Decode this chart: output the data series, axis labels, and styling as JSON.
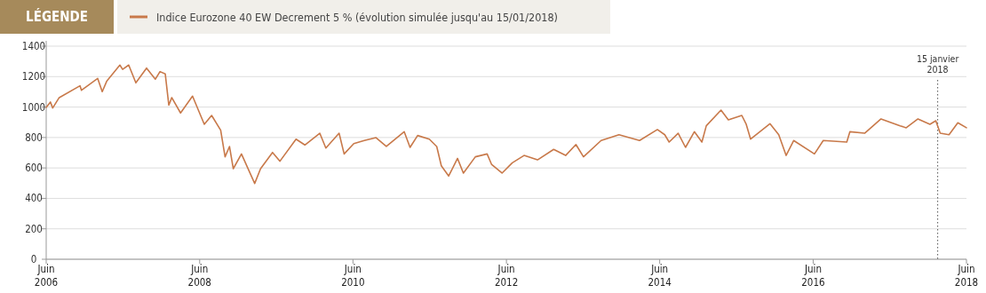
{
  "chart_data": {
    "type": "line",
    "legend_title": "LÉGENDE",
    "legend": "top left",
    "grid": "y",
    "xlim": [
      "2006-06-01",
      "2018-06-01"
    ],
    "xticks": [
      {
        "value": "2006-06-01",
        "label": "Juin\n2006"
      },
      {
        "value": "2008-06-01",
        "label": "Juin\n2008"
      },
      {
        "value": "2010-06-01",
        "label": "Juin\n2010"
      },
      {
        "value": "2012-06-01",
        "label": "Juin\n2012"
      },
      {
        "value": "2014-06-01",
        "label": "Juin\n2014"
      },
      {
        "value": "2016-06-01",
        "label": "Juin\n2016"
      },
      {
        "value": "2018-06-01",
        "label": "Juin\n2018"
      }
    ],
    "ylim": [
      0,
      1400
    ],
    "yticks": [
      0,
      200,
      400,
      600,
      800,
      1000,
      1200,
      1400
    ],
    "ref_lines": [
      {
        "axis": "x",
        "value": "2018-01-15",
        "label": "15 janvier\n2018",
        "line_style": "dotted",
        "color": "#555555"
      }
    ],
    "series": [
      {
        "name": "Indice Eurozone 40 EW Decrement 5 % (évolution simulée jusqu'au 15/01/2018)",
        "color": "#c8794a",
        "x": [
          "2006-06-01",
          "2006-06-21",
          "2006-07-02",
          "2006-08-02",
          "2006-11-09",
          "2006-11-16",
          "2007-02-01",
          "2007-02-23",
          "2007-03-16",
          "2007-05-18",
          "2007-05-31",
          "2007-06-29",
          "2007-08-02",
          "2007-09-22",
          "2007-11-03",
          "2007-11-25",
          "2007-12-20",
          "2008-01-06",
          "2008-01-20",
          "2008-03-02",
          "2008-04-28",
          "2008-06-23",
          "2008-07-28",
          "2008-09-09",
          "2008-09-30",
          "2008-10-21",
          "2008-11-08",
          "2008-12-17",
          "2009-02-18",
          "2009-03-18",
          "2009-05-14",
          "2009-06-18",
          "2009-09-03",
          "2009-10-15",
          "2009-12-25",
          "2010-01-23",
          "2010-03-27",
          "2010-04-20",
          "2010-06-05",
          "2010-07-25",
          "2010-09-19",
          "2010-11-07",
          "2011-01-31",
          "2011-02-28",
          "2011-04-05",
          "2011-05-31",
          "2011-07-05",
          "2011-07-27",
          "2011-08-31",
          "2011-10-12",
          "2011-11-09",
          "2012-01-05",
          "2012-03-01",
          "2012-03-22",
          "2012-05-11",
          "2012-06-29",
          "2012-08-24",
          "2012-10-27",
          "2013-01-12",
          "2013-03-10",
          "2013-04-28",
          "2013-06-03",
          "2013-08-26",
          "2013-11-19",
          "2014-02-25",
          "2014-05-21",
          "2014-06-25",
          "2014-07-16",
          "2014-08-28",
          "2014-10-02",
          "2014-11-13",
          "2014-12-19",
          "2015-01-09",
          "2015-03-20",
          "2015-04-24",
          "2015-06-27",
          "2015-07-18",
          "2015-08-08",
          "2015-11-08",
          "2015-12-20",
          "2016-01-24",
          "2016-02-29",
          "2016-06-07",
          "2016-07-19",
          "2016-11-08",
          "2016-11-23",
          "2017-02-01",
          "2017-04-20",
          "2017-07-20",
          "2017-08-18",
          "2017-10-13",
          "2017-12-09",
          "2018-01-06",
          "2018-01-27",
          "2018-03-10",
          "2018-04-21",
          "2018-06-01"
        ],
        "values": [
          998,
          1033,
          994,
          1062,
          1140,
          1110,
          1188,
          1101,
          1169,
          1276,
          1248,
          1276,
          1159,
          1256,
          1183,
          1233,
          1218,
          1013,
          1062,
          961,
          1072,
          887,
          945,
          848,
          673,
          741,
          595,
          692,
          498,
          595,
          702,
          644,
          789,
          751,
          828,
          731,
          828,
          692,
          760,
          780,
          799,
          741,
          838,
          735,
          813,
          789,
          741,
          614,
          547,
          663,
          566,
          673,
          692,
          624,
          566,
          634,
          682,
          653,
          722,
          682,
          754,
          673,
          780,
          818,
          780,
          852,
          818,
          770,
          828,
          735,
          838,
          770,
          877,
          980,
          916,
          945,
          887,
          789,
          891,
          818,
          682,
          780,
          692,
          780,
          770,
          838,
          828,
          922,
          877,
          864,
          922,
          887,
          910,
          828,
          818,
          897,
          864
        ]
      }
    ]
  }
}
